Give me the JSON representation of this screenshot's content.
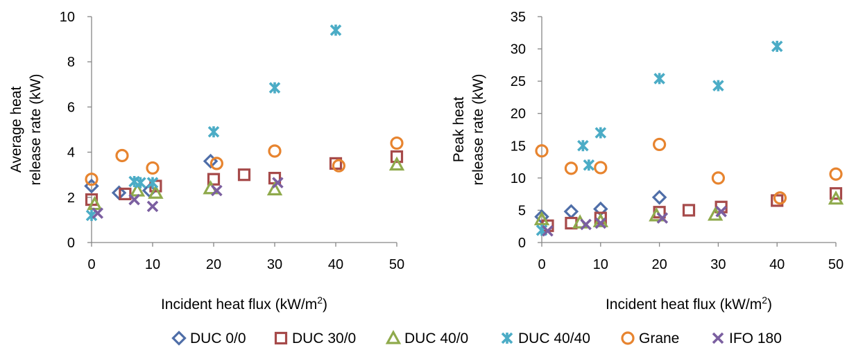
{
  "series_styles": [
    {
      "name": "DUC 0/0",
      "marker": "diamond",
      "color": "#4f6ea8"
    },
    {
      "name": "DUC 30/0",
      "marker": "square",
      "color": "#a64a4a"
    },
    {
      "name": "DUC 40/0",
      "marker": "triangle",
      "color": "#8faa4c"
    },
    {
      "name": "DUC 40/40",
      "marker": "asterisk",
      "color": "#4bacc6"
    },
    {
      "name": "Grane",
      "marker": "circle",
      "color": "#e7842f"
    },
    {
      "name": "IFO 180",
      "marker": "x",
      "color": "#7b5fa0"
    }
  ],
  "chart_data": [
    {
      "type": "scatter",
      "title": "",
      "xlabel": "Incident heat flux (kW/m",
      "xlabel_sup": "2",
      "xlabel_end": ")",
      "ylabel_lines": [
        "Average heat",
        "release rate (kW)"
      ],
      "xlim": [
        0,
        50
      ],
      "ylim": [
        0,
        10
      ],
      "xticks": [
        "0",
        "10",
        "20",
        "30",
        "40",
        "50"
      ],
      "yticks": [
        "0",
        "2",
        "4",
        "6",
        "8",
        "10"
      ],
      "grid": false,
      "series": [
        {
          "name": "DUC 0/0",
          "points": [
            [
              0,
              2.5
            ],
            [
              4.5,
              2.2
            ],
            [
              9.5,
              2.3
            ],
            [
              19.5,
              3.6
            ]
          ]
        },
        {
          "name": "DUC 30/0",
          "points": [
            [
              0,
              1.9
            ],
            [
              5.5,
              2.15
            ],
            [
              10.5,
              2.5
            ],
            [
              20,
              2.8
            ],
            [
              25,
              3.0
            ],
            [
              30,
              2.85
            ],
            [
              40,
              3.5
            ],
            [
              50,
              3.8
            ]
          ]
        },
        {
          "name": "DUC 40/0",
          "points": [
            [
              0.5,
              1.7
            ],
            [
              7.5,
              2.3
            ],
            [
              10.5,
              2.2
            ],
            [
              19.5,
              2.4
            ],
            [
              30,
              2.35
            ],
            [
              50,
              3.45
            ]
          ]
        },
        {
          "name": "DUC 40/40",
          "points": [
            [
              0,
              1.2
            ],
            [
              7,
              2.7
            ],
            [
              8,
              2.65
            ],
            [
              10,
              2.65
            ],
            [
              20,
              4.9
            ],
            [
              30,
              6.85
            ],
            [
              40,
              9.4
            ]
          ]
        },
        {
          "name": "Grane",
          "points": [
            [
              0,
              2.8
            ],
            [
              5,
              3.85
            ],
            [
              10,
              3.3
            ],
            [
              20.5,
              3.5
            ],
            [
              30,
              4.05
            ],
            [
              40.5,
              3.4
            ],
            [
              50,
              4.4
            ]
          ]
        },
        {
          "name": "IFO 180",
          "points": [
            [
              1,
              1.3
            ],
            [
              7,
              1.9
            ],
            [
              10,
              1.6
            ],
            [
              20.5,
              2.3
            ],
            [
              30.5,
              2.65
            ]
          ]
        }
      ]
    },
    {
      "type": "scatter",
      "title": "",
      "xlabel": "Incident heat flux (kW/m",
      "xlabel_sup": "2",
      "xlabel_end": ")",
      "ylabel_lines": [
        "Peak heat",
        "release rate (kW)"
      ],
      "xlim": [
        0,
        50
      ],
      "ylim": [
        0,
        35
      ],
      "xticks": [
        "0",
        "10",
        "20",
        "30",
        "40",
        "50"
      ],
      "yticks": [
        "0",
        "5",
        "10",
        "15",
        "20",
        "25",
        "30",
        "35"
      ],
      "grid": false,
      "series": [
        {
          "name": "DUC 0/0",
          "points": [
            [
              0,
              4.0
            ],
            [
              5,
              4.8
            ],
            [
              10,
              5.2
            ],
            [
              20,
              7.0
            ]
          ]
        },
        {
          "name": "DUC 30/0",
          "points": [
            [
              1,
              2.6
            ],
            [
              5,
              3.0
            ],
            [
              10,
              3.8
            ],
            [
              20,
              4.7
            ],
            [
              25,
              5.0
            ],
            [
              30.5,
              5.5
            ],
            [
              40,
              6.5
            ],
            [
              50,
              7.6
            ]
          ]
        },
        {
          "name": "DUC 40/0",
          "points": [
            [
              0,
              3.6
            ],
            [
              6.5,
              3.1
            ],
            [
              10,
              3.3
            ],
            [
              19.5,
              4.2
            ],
            [
              29.5,
              4.3
            ],
            [
              50,
              6.8
            ]
          ]
        },
        {
          "name": "DUC 40/40",
          "points": [
            [
              0,
              1.9
            ],
            [
              7,
              15.0
            ],
            [
              8,
              12.0
            ],
            [
              10,
              17.0
            ],
            [
              20,
              25.4
            ],
            [
              30,
              24.3
            ],
            [
              40,
              30.4
            ]
          ]
        },
        {
          "name": "Grane",
          "points": [
            [
              0,
              14.2
            ],
            [
              5,
              11.5
            ],
            [
              10,
              11.6
            ],
            [
              20,
              15.2
            ],
            [
              30,
              10.0
            ],
            [
              40.5,
              6.9
            ],
            [
              50,
              10.6
            ]
          ]
        },
        {
          "name": "IFO 180",
          "points": [
            [
              1,
              1.8
            ],
            [
              7.5,
              2.8
            ],
            [
              10,
              3.0
            ],
            [
              20.5,
              3.8
            ],
            [
              30.5,
              4.8
            ]
          ]
        }
      ]
    }
  ]
}
